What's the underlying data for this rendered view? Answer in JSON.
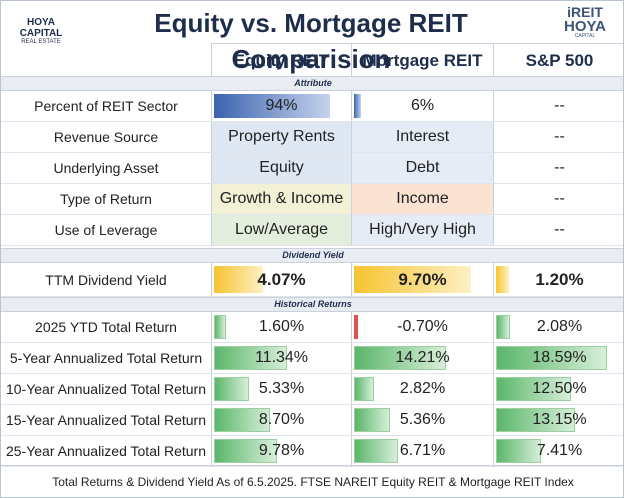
{
  "header": {
    "title": "Equity vs. Mortgage REIT Comparision",
    "logo_left": "HOYA CAPITAL",
    "logo_left_sub": "REAL ESTATE",
    "logo_right_top": "iREIT",
    "logo_right_bottom": "HOYA",
    "logo_right_sub": "CAPITAL"
  },
  "columns": [
    "Equity REIT",
    "Mortgage REIT",
    "S&P 500"
  ],
  "sections": [
    {
      "title": "Attribute",
      "rows": [
        {
          "label": "Percent of REIT Sector",
          "cells": [
            {
              "value": 94,
              "label": "94%"
            },
            {
              "value": 6,
              "label": "6%"
            },
            {
              "label": "--"
            }
          ]
        },
        {
          "label": "Revenue Source",
          "cells": [
            {
              "label": "Property Rents"
            },
            {
              "label": "Interest"
            },
            {
              "label": "--"
            }
          ]
        },
        {
          "label": "Underlying Asset",
          "cells": [
            {
              "label": "Equity"
            },
            {
              "label": "Debt"
            },
            {
              "label": "--"
            }
          ]
        },
        {
          "label": "Type of Return",
          "cells": [
            {
              "label": "Growth & Income"
            },
            {
              "label": "Income"
            },
            {
              "label": "--"
            }
          ]
        },
        {
          "label": "Use of Leverage",
          "cells": [
            {
              "label": "Low/Average"
            },
            {
              "label": "High/Very High"
            },
            {
              "label": "--"
            }
          ]
        }
      ]
    },
    {
      "title": "Dividend Yield",
      "rows": [
        {
          "label": "TTM Dividend Yield",
          "cells": [
            {
              "value": 4.07,
              "label": "4.07%"
            },
            {
              "value": 9.7,
              "label": "9.70%"
            },
            {
              "value": 1.2,
              "label": "1.20%"
            }
          ]
        }
      ]
    },
    {
      "title": "Historical Returns",
      "rows": [
        {
          "label": "2025 YTD Total Return",
          "cells": [
            {
              "value": 1.6,
              "label": "1.60%"
            },
            {
              "value": -0.7,
              "label": "-0.70%"
            },
            {
              "value": 2.08,
              "label": "2.08%"
            }
          ]
        },
        {
          "label": "5-Year Annualized Total Return",
          "cells": [
            {
              "value": 11.34,
              "label": "11.34%"
            },
            {
              "value": 14.21,
              "label": "14.21%"
            },
            {
              "value": 18.59,
              "label": "18.59%"
            }
          ]
        },
        {
          "label": "10-Year Annualized Total Return",
          "cells": [
            {
              "value": 5.33,
              "label": "5.33%"
            },
            {
              "value": 2.82,
              "label": "2.82%"
            },
            {
              "value": 12.5,
              "label": "12.50%"
            }
          ]
        },
        {
          "label": "15-Year Annualized Total Return",
          "cells": [
            {
              "value": 8.7,
              "label": "8.70%"
            },
            {
              "value": 5.36,
              "label": "5.36%"
            },
            {
              "value": 13.15,
              "label": "13.15%"
            }
          ]
        },
        {
          "label": "25-Year Annualized Total Return",
          "cells": [
            {
              "value": 9.78,
              "label": "9.78%"
            },
            {
              "value": 6.71,
              "label": "6.71%"
            },
            {
              "value": 7.41,
              "label": "7.41%"
            }
          ]
        }
      ]
    }
  ],
  "footer": "Total Returns & Dividend Yield As of 6.5.2025. FTSE NAREIT Equity REIT & Mortgage REIT Index"
}
